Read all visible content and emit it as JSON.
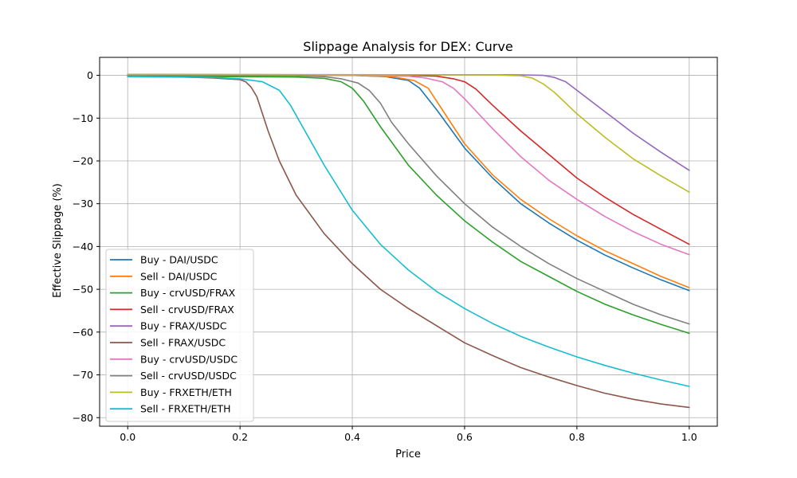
{
  "chart_data": {
    "type": "line",
    "title": "Slippage Analysis for DEX: Curve",
    "xlabel": "Price",
    "ylabel": "Effective Slippage (%)",
    "xlim": [
      -0.05,
      1.05
    ],
    "ylim": [
      -82,
      4.2
    ],
    "xticks": [
      0.0,
      0.2,
      0.4,
      0.6,
      0.8,
      1.0
    ],
    "xtick_labels": [
      "0.0",
      "0.2",
      "0.4",
      "0.6",
      "0.8",
      "1.0"
    ],
    "yticks": [
      0,
      -10,
      -20,
      -30,
      -40,
      -50,
      -60,
      -70,
      -80
    ],
    "ytick_labels": [
      "0",
      "−10",
      "−20",
      "−30",
      "−40",
      "−50",
      "−60",
      "−70",
      "−80"
    ],
    "grid": true,
    "legend_position": "lower-left",
    "series": [
      {
        "name": "Buy - DAI/USDC",
        "color": "#1f77b4",
        "points": [
          [
            0.0,
            0.2
          ],
          [
            0.3,
            0.1
          ],
          [
            0.4,
            0.0
          ],
          [
            0.46,
            -0.3
          ],
          [
            0.5,
            -1.2
          ],
          [
            0.52,
            -3.0
          ],
          [
            0.55,
            -8.0
          ],
          [
            0.6,
            -17.0
          ],
          [
            0.65,
            -24.0
          ],
          [
            0.7,
            -30.0
          ],
          [
            0.75,
            -34.5
          ],
          [
            0.8,
            -38.5
          ],
          [
            0.85,
            -42.0
          ],
          [
            0.9,
            -45.0
          ],
          [
            0.95,
            -47.8
          ],
          [
            1.0,
            -50.3
          ]
        ]
      },
      {
        "name": "Sell - DAI/USDC",
        "color": "#ff7f0e",
        "points": [
          [
            0.0,
            0.2
          ],
          [
            0.3,
            0.1
          ],
          [
            0.4,
            0.0
          ],
          [
            0.47,
            -0.3
          ],
          [
            0.51,
            -1.2
          ],
          [
            0.535,
            -3.0
          ],
          [
            0.56,
            -8.0
          ],
          [
            0.6,
            -16.0
          ],
          [
            0.65,
            -23.3
          ],
          [
            0.7,
            -29.0
          ],
          [
            0.75,
            -33.5
          ],
          [
            0.8,
            -37.5
          ],
          [
            0.85,
            -41.0
          ],
          [
            0.9,
            -44.0
          ],
          [
            0.95,
            -47.0
          ],
          [
            1.0,
            -49.6
          ]
        ]
      },
      {
        "name": "Buy - crvUSD/FRAX",
        "color": "#2ca02c",
        "points": [
          [
            0.0,
            -0.3
          ],
          [
            0.2,
            -0.3
          ],
          [
            0.3,
            -0.4
          ],
          [
            0.35,
            -0.7
          ],
          [
            0.38,
            -1.5
          ],
          [
            0.4,
            -3.0
          ],
          [
            0.42,
            -6.0
          ],
          [
            0.45,
            -12.0
          ],
          [
            0.5,
            -21.0
          ],
          [
            0.55,
            -28.0
          ],
          [
            0.6,
            -34.0
          ],
          [
            0.65,
            -39.0
          ],
          [
            0.7,
            -43.5
          ],
          [
            0.75,
            -47.0
          ],
          [
            0.8,
            -50.5
          ],
          [
            0.85,
            -53.5
          ],
          [
            0.9,
            -56.0
          ],
          [
            0.95,
            -58.2
          ],
          [
            1.0,
            -60.3
          ]
        ]
      },
      {
        "name": "Sell - crvUSD/FRAX",
        "color": "#d62728",
        "points": [
          [
            0.0,
            0.1
          ],
          [
            0.5,
            0.0
          ],
          [
            0.55,
            -0.2
          ],
          [
            0.58,
            -0.8
          ],
          [
            0.6,
            -1.5
          ],
          [
            0.62,
            -3.2
          ],
          [
            0.65,
            -7.0
          ],
          [
            0.7,
            -13.0
          ],
          [
            0.75,
            -18.5
          ],
          [
            0.8,
            -24.0
          ],
          [
            0.85,
            -28.5
          ],
          [
            0.9,
            -32.5
          ],
          [
            0.95,
            -36.0
          ],
          [
            1.0,
            -39.5
          ]
        ]
      },
      {
        "name": "Buy - FRAX/USDC",
        "color": "#9467bd",
        "points": [
          [
            0.0,
            0.2
          ],
          [
            0.7,
            0.1
          ],
          [
            0.74,
            0.0
          ],
          [
            0.76,
            -0.5
          ],
          [
            0.78,
            -1.5
          ],
          [
            0.8,
            -3.5
          ],
          [
            0.85,
            -8.5
          ],
          [
            0.9,
            -13.5
          ],
          [
            0.95,
            -18.0
          ],
          [
            1.0,
            -22.2
          ]
        ]
      },
      {
        "name": "Sell - FRAX/USDC",
        "color": "#8c564b",
        "points": [
          [
            0.0,
            -0.3
          ],
          [
            0.1,
            -0.4
          ],
          [
            0.15,
            -0.6
          ],
          [
            0.2,
            -1.0
          ],
          [
            0.21,
            -1.5
          ],
          [
            0.22,
            -2.8
          ],
          [
            0.23,
            -5.0
          ],
          [
            0.25,
            -13.0
          ],
          [
            0.27,
            -20.0
          ],
          [
            0.3,
            -28.0
          ],
          [
            0.35,
            -37.0
          ],
          [
            0.4,
            -44.0
          ],
          [
            0.45,
            -50.0
          ],
          [
            0.5,
            -54.5
          ],
          [
            0.55,
            -58.5
          ],
          [
            0.6,
            -62.5
          ],
          [
            0.65,
            -65.5
          ],
          [
            0.7,
            -68.3
          ],
          [
            0.75,
            -70.5
          ],
          [
            0.8,
            -72.5
          ],
          [
            0.85,
            -74.3
          ],
          [
            0.9,
            -75.7
          ],
          [
            0.95,
            -76.8
          ],
          [
            1.0,
            -77.6
          ]
        ]
      },
      {
        "name": "Buy - crvUSD/USDC",
        "color": "#e377c2",
        "points": [
          [
            0.0,
            0.1
          ],
          [
            0.4,
            0.0
          ],
          [
            0.5,
            -0.2
          ],
          [
            0.53,
            -0.6
          ],
          [
            0.56,
            -1.5
          ],
          [
            0.58,
            -3.0
          ],
          [
            0.6,
            -5.5
          ],
          [
            0.65,
            -12.5
          ],
          [
            0.7,
            -19.0
          ],
          [
            0.75,
            -24.5
          ],
          [
            0.8,
            -29.0
          ],
          [
            0.85,
            -33.0
          ],
          [
            0.9,
            -36.5
          ],
          [
            0.95,
            -39.5
          ],
          [
            1.0,
            -41.9
          ]
        ]
      },
      {
        "name": "Sell - crvUSD/USDC",
        "color": "#7f7f7f",
        "points": [
          [
            0.0,
            0.0
          ],
          [
            0.3,
            -0.1
          ],
          [
            0.35,
            -0.3
          ],
          [
            0.38,
            -0.8
          ],
          [
            0.41,
            -1.8
          ],
          [
            0.43,
            -3.5
          ],
          [
            0.45,
            -6.5
          ],
          [
            0.47,
            -11.0
          ],
          [
            0.5,
            -16.0
          ],
          [
            0.55,
            -23.5
          ],
          [
            0.6,
            -30.0
          ],
          [
            0.65,
            -35.5
          ],
          [
            0.7,
            -40.0
          ],
          [
            0.75,
            -44.0
          ],
          [
            0.8,
            -47.5
          ],
          [
            0.85,
            -50.5
          ],
          [
            0.9,
            -53.5
          ],
          [
            0.95,
            -56.0
          ],
          [
            1.0,
            -58.1
          ]
        ]
      },
      {
        "name": "Buy - FRXETH/ETH",
        "color": "#bcbd22",
        "points": [
          [
            0.0,
            0.2
          ],
          [
            0.65,
            0.1
          ],
          [
            0.7,
            -0.1
          ],
          [
            0.72,
            -0.6
          ],
          [
            0.74,
            -2.0
          ],
          [
            0.76,
            -4.0
          ],
          [
            0.8,
            -9.0
          ],
          [
            0.85,
            -14.5
          ],
          [
            0.9,
            -19.5
          ],
          [
            0.95,
            -23.5
          ],
          [
            1.0,
            -27.3
          ]
        ]
      },
      {
        "name": "Sell - FRXETH/ETH",
        "color": "#17becf",
        "points": [
          [
            0.0,
            -0.3
          ],
          [
            0.15,
            -0.5
          ],
          [
            0.2,
            -0.8
          ],
          [
            0.24,
            -1.5
          ],
          [
            0.27,
            -3.5
          ],
          [
            0.29,
            -7.0
          ],
          [
            0.32,
            -14.0
          ],
          [
            0.35,
            -21.0
          ],
          [
            0.4,
            -31.5
          ],
          [
            0.45,
            -39.5
          ],
          [
            0.5,
            -45.5
          ],
          [
            0.55,
            -50.5
          ],
          [
            0.6,
            -54.5
          ],
          [
            0.65,
            -58.0
          ],
          [
            0.7,
            -61.0
          ],
          [
            0.75,
            -63.5
          ],
          [
            0.8,
            -65.8
          ],
          [
            0.85,
            -67.8
          ],
          [
            0.9,
            -69.6
          ],
          [
            0.95,
            -71.2
          ],
          [
            1.0,
            -72.7
          ]
        ]
      }
    ]
  }
}
